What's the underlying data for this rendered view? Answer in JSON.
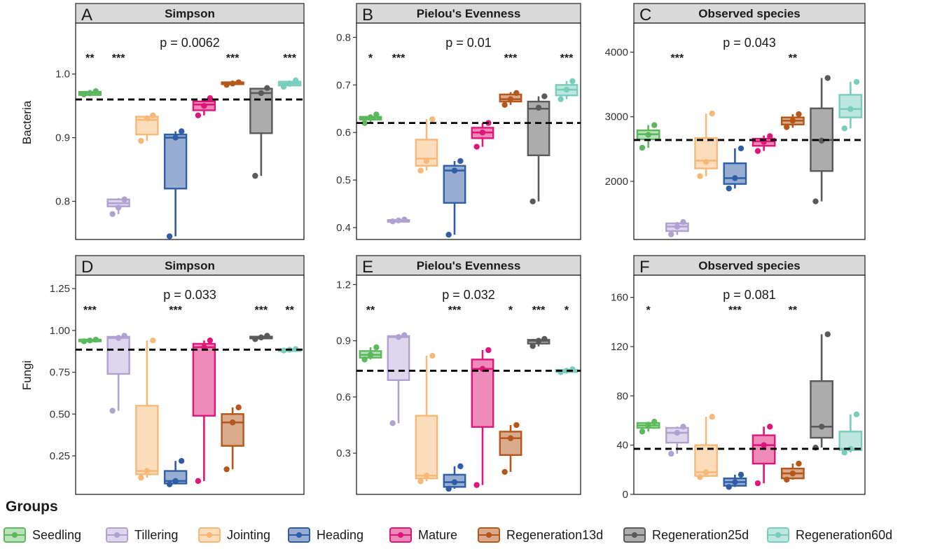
{
  "chart_data": {
    "type": "boxplot",
    "groups_title": "Groups",
    "groups": [
      {
        "name": "Seedling",
        "color": "#5cb85c",
        "fill": "#b9e2b9"
      },
      {
        "name": "Tillering",
        "color": "#b0a2d0",
        "fill": "#ddd6ec"
      },
      {
        "name": "Jointing",
        "color": "#f6b97a",
        "fill": "#fbdcbb"
      },
      {
        "name": "Heading",
        "color": "#2f5ea6",
        "fill": "#97aed2"
      },
      {
        "name": "Mature",
        "color": "#e0157a",
        "fill": "#ee8ab9"
      },
      {
        "name": "Regeneration13d",
        "color": "#b5561a",
        "fill": "#d9aa8b"
      },
      {
        "name": "Regeneration25d",
        "color": "#5a5a5a",
        "fill": "#adacac"
      },
      {
        "name": "Regeneration60d",
        "color": "#78cdbd",
        "fill": "#bce6de"
      }
    ],
    "row_labels": [
      "Bacteria",
      "Fungi"
    ],
    "panels": [
      {
        "letter": "A",
        "title": "Simpson",
        "p": "p = 0.0062",
        "ylim": [
          0.74,
          1.08
        ],
        "ticks": [
          0.8,
          0.9,
          1.0
        ],
        "tick_labels": [
          "0.8",
          "0.9",
          "1.0"
        ],
        "ref": 0.96,
        "boxes": [
          {
            "min": 0.965,
            "q1": 0.967,
            "med": 0.97,
            "q3": 0.972,
            "max": 0.975,
            "points": [
              0.968,
              0.97,
              0.973
            ]
          },
          {
            "min": 0.78,
            "q1": 0.792,
            "med": 0.797,
            "q3": 0.803,
            "max": 0.805,
            "points": [
              0.78,
              0.79,
              0.803
            ]
          },
          {
            "min": 0.895,
            "q1": 0.905,
            "med": 0.928,
            "q3": 0.933,
            "max": 0.935,
            "points": [
              0.895,
              0.93,
              0.935
            ]
          },
          {
            "min": 0.745,
            "q1": 0.82,
            "med": 0.9,
            "q3": 0.905,
            "max": 0.91,
            "points": [
              0.745,
              0.9,
              0.91
            ]
          },
          {
            "min": 0.935,
            "q1": 0.943,
            "med": 0.952,
            "q3": 0.957,
            "max": 0.962,
            "points": [
              0.935,
              0.95,
              0.962
            ]
          },
          {
            "min": 0.982,
            "q1": 0.984,
            "med": 0.985,
            "q3": 0.987,
            "max": 0.988,
            "points": [
              0.983,
              0.985,
              0.987
            ]
          },
          {
            "min": 0.84,
            "q1": 0.907,
            "med": 0.97,
            "q3": 0.977,
            "max": 0.978,
            "points": [
              0.84,
              0.97,
              0.978
            ]
          },
          {
            "min": 0.98,
            "q1": 0.982,
            "med": 0.985,
            "q3": 0.988,
            "max": 0.99,
            "points": [
              0.98,
              0.985,
              0.99
            ]
          }
        ],
        "sig": [
          "**",
          "***",
          "",
          "",
          "",
          "***",
          "",
          "***"
        ]
      },
      {
        "letter": "B",
        "title": "Pielou's Evenness",
        "p": "p = 0.01",
        "ylim": [
          0.375,
          0.83
        ],
        "ticks": [
          0.4,
          0.5,
          0.6,
          0.7,
          0.8
        ],
        "tick_labels": [
          "0.4",
          "0.5",
          "0.6",
          "0.7",
          "0.8"
        ],
        "ref": 0.62,
        "boxes": [
          {
            "min": 0.62,
            "q1": 0.627,
            "med": 0.63,
            "q3": 0.633,
            "max": 0.638,
            "points": [
              0.62,
              0.632,
              0.638
            ]
          },
          {
            "min": 0.412,
            "q1": 0.413,
            "med": 0.415,
            "q3": 0.416,
            "max": 0.418,
            "points": [
              0.413,
              0.415,
              0.417
            ]
          },
          {
            "min": 0.52,
            "q1": 0.53,
            "med": 0.545,
            "q3": 0.585,
            "max": 0.628,
            "points": [
              0.52,
              0.54,
              0.628
            ]
          },
          {
            "min": 0.385,
            "q1": 0.452,
            "med": 0.52,
            "q3": 0.53,
            "max": 0.54,
            "points": [
              0.385,
              0.52,
              0.54
            ]
          },
          {
            "min": 0.57,
            "q1": 0.588,
            "med": 0.6,
            "q3": 0.61,
            "max": 0.62,
            "points": [
              0.57,
              0.6,
              0.62
            ]
          },
          {
            "min": 0.658,
            "q1": 0.665,
            "med": 0.67,
            "q3": 0.68,
            "max": 0.685,
            "points": [
              0.658,
              0.67,
              0.683
            ]
          },
          {
            "min": 0.455,
            "q1": 0.552,
            "med": 0.65,
            "q3": 0.665,
            "max": 0.676,
            "points": [
              0.455,
              0.652,
              0.676
            ]
          },
          {
            "min": 0.67,
            "q1": 0.678,
            "med": 0.69,
            "q3": 0.7,
            "max": 0.708,
            "points": [
              0.67,
              0.69,
              0.708
            ]
          }
        ],
        "sig": [
          "*",
          "***",
          "",
          "",
          "",
          "***",
          "",
          "***"
        ]
      },
      {
        "letter": "C",
        "title": "Observed species",
        "p": "p = 0.043",
        "ylim": [
          1100,
          4450
        ],
        "ticks": [
          2000,
          3000,
          4000
        ],
        "tick_labels": [
          "2000",
          "3000",
          "4000"
        ],
        "ref": 2640,
        "boxes": [
          {
            "min": 2520,
            "q1": 2650,
            "med": 2730,
            "q3": 2790,
            "max": 2870,
            "points": [
              2520,
              2720,
              2870
            ]
          },
          {
            "min": 1170,
            "q1": 1230,
            "med": 1300,
            "q3": 1350,
            "max": 1370,
            "points": [
              1180,
              1300,
              1370
            ]
          },
          {
            "min": 2080,
            "q1": 2200,
            "med": 2320,
            "q3": 2670,
            "max": 3050,
            "points": [
              2080,
              2300,
              3050
            ]
          },
          {
            "min": 1890,
            "q1": 1960,
            "med": 2050,
            "q3": 2280,
            "max": 2510,
            "points": [
              1890,
              2050,
              2510
            ]
          },
          {
            "min": 2470,
            "q1": 2550,
            "med": 2620,
            "q3": 2660,
            "max": 2710,
            "points": [
              2470,
              2610,
              2700
            ]
          },
          {
            "min": 2830,
            "q1": 2880,
            "med": 2940,
            "q3": 2990,
            "max": 3040,
            "points": [
              2840,
              2940,
              3040
            ]
          },
          {
            "min": 1690,
            "q1": 2160,
            "med": 2640,
            "q3": 3130,
            "max": 3600,
            "points": [
              1690,
              2630,
              3600
            ]
          },
          {
            "min": 2820,
            "q1": 2990,
            "med": 3120,
            "q3": 3340,
            "max": 3540,
            "points": [
              2820,
              3120,
              3540
            ]
          }
        ],
        "sig": [
          "",
          "***",
          "",
          "",
          "",
          "**",
          "",
          ""
        ]
      },
      {
        "letter": "D",
        "title": "Simpson",
        "p": "p = 0.033",
        "ylim": [
          0.02,
          1.33
        ],
        "ticks": [
          0.25,
          0.5,
          0.75,
          1.0,
          1.25
        ],
        "tick_labels": [
          "0.25",
          "0.50",
          "0.75",
          "1.00",
          "1.25"
        ],
        "ref": 0.885,
        "boxes": [
          {
            "min": 0.93,
            "q1": 0.935,
            "med": 0.94,
            "q3": 0.945,
            "max": 0.95,
            "points": [
              0.935,
              0.94,
              0.945
            ]
          },
          {
            "min": 0.52,
            "q1": 0.74,
            "med": 0.955,
            "q3": 0.962,
            "max": 0.968,
            "points": [
              0.52,
              0.955,
              0.968
            ]
          },
          {
            "min": 0.12,
            "q1": 0.14,
            "med": 0.16,
            "q3": 0.55,
            "max": 0.94,
            "points": [
              0.12,
              0.16,
              0.94
            ]
          },
          {
            "min": 0.08,
            "q1": 0.085,
            "med": 0.1,
            "q3": 0.16,
            "max": 0.22,
            "points": [
              0.08,
              0.1,
              0.22
            ]
          },
          {
            "min": 0.1,
            "q1": 0.49,
            "med": 0.9,
            "q3": 0.92,
            "max": 0.94,
            "points": [
              0.1,
              0.9,
              0.94
            ]
          },
          {
            "min": 0.17,
            "q1": 0.31,
            "med": 0.45,
            "q3": 0.5,
            "max": 0.54,
            "points": [
              0.17,
              0.45,
              0.54
            ]
          },
          {
            "min": 0.945,
            "q1": 0.952,
            "med": 0.958,
            "q3": 0.963,
            "max": 0.97,
            "points": [
              0.948,
              0.958,
              0.968
            ]
          },
          {
            "min": 0.878,
            "q1": 0.881,
            "med": 0.884,
            "q3": 0.887,
            "max": 0.89,
            "points": [
              0.88,
              0.884,
              0.888
            ]
          }
        ],
        "sig": [
          "***",
          "",
          "",
          "***",
          "",
          "",
          "***",
          "**"
        ]
      },
      {
        "letter": "E",
        "title": "Pielou's Evenness",
        "p": "p = 0.032",
        "ylim": [
          0.08,
          1.25
        ],
        "ticks": [
          0.3,
          0.6,
          0.9,
          1.2
        ],
        "tick_labels": [
          "0.3",
          "0.6",
          "0.9",
          "1.2"
        ],
        "ref": 0.74,
        "boxes": [
          {
            "min": 0.8,
            "q1": 0.81,
            "med": 0.825,
            "q3": 0.845,
            "max": 0.865,
            "points": [
              0.8,
              0.825,
              0.865
            ]
          },
          {
            "min": 0.46,
            "q1": 0.69,
            "med": 0.92,
            "q3": 0.925,
            "max": 0.93,
            "points": [
              0.46,
              0.92,
              0.93
            ]
          },
          {
            "min": 0.15,
            "q1": 0.165,
            "med": 0.18,
            "q3": 0.5,
            "max": 0.82,
            "points": [
              0.15,
              0.18,
              0.82
            ]
          },
          {
            "min": 0.11,
            "q1": 0.12,
            "med": 0.145,
            "q3": 0.185,
            "max": 0.23,
            "points": [
              0.11,
              0.145,
              0.23
            ]
          },
          {
            "min": 0.13,
            "q1": 0.44,
            "med": 0.75,
            "q3": 0.8,
            "max": 0.85,
            "points": [
              0.13,
              0.75,
              0.85
            ]
          },
          {
            "min": 0.2,
            "q1": 0.29,
            "med": 0.38,
            "q3": 0.415,
            "max": 0.45,
            "points": [
              0.2,
              0.38,
              0.45
            ]
          },
          {
            "min": 0.87,
            "q1": 0.885,
            "med": 0.9,
            "q3": 0.905,
            "max": 0.91,
            "points": [
              0.872,
              0.9,
              0.91
            ]
          },
          {
            "min": 0.73,
            "q1": 0.733,
            "med": 0.74,
            "q3": 0.745,
            "max": 0.75,
            "points": [
              0.732,
              0.74,
              0.748
            ]
          }
        ],
        "sig": [
          "**",
          "",
          "",
          "***",
          "",
          "*",
          "***",
          "*"
        ]
      },
      {
        "letter": "F",
        "title": "Observed species",
        "p": "p = 0.081",
        "ylim": [
          0,
          178
        ],
        "ticks": [
          0,
          40,
          80,
          120,
          160
        ],
        "tick_labels": [
          "0",
          "40",
          "80",
          "120",
          "160"
        ],
        "ref": 37,
        "boxes": [
          {
            "min": 51,
            "q1": 54,
            "med": 56,
            "q3": 58,
            "max": 59,
            "points": [
              51,
              56,
              59
            ]
          },
          {
            "min": 33,
            "q1": 42,
            "med": 50,
            "q3": 54,
            "max": 55,
            "points": [
              33,
              50,
              55
            ]
          },
          {
            "min": 14,
            "q1": 15,
            "med": 18,
            "q3": 40,
            "max": 63,
            "points": [
              14,
              18,
              63
            ]
          },
          {
            "min": 6,
            "q1": 7,
            "med": 10,
            "q3": 13,
            "max": 16,
            "points": [
              6,
              10,
              16
            ]
          },
          {
            "min": 9,
            "q1": 25,
            "med": 40,
            "q3": 48,
            "max": 55,
            "points": [
              9,
              40,
              55
            ]
          },
          {
            "min": 12,
            "q1": 13,
            "med": 17,
            "q3": 21,
            "max": 25,
            "points": [
              12,
              17,
              25
            ]
          },
          {
            "min": 38,
            "q1": 46,
            "med": 55,
            "q3": 92,
            "max": 130,
            "points": [
              38,
              55,
              130
            ]
          },
          {
            "min": 34,
            "q1": 36,
            "med": 37,
            "q3": 51,
            "max": 65,
            "points": [
              34,
              37,
              65
            ]
          }
        ],
        "sig": [
          "*",
          "",
          "",
          "***",
          "",
          "**",
          "",
          ""
        ]
      }
    ]
  }
}
